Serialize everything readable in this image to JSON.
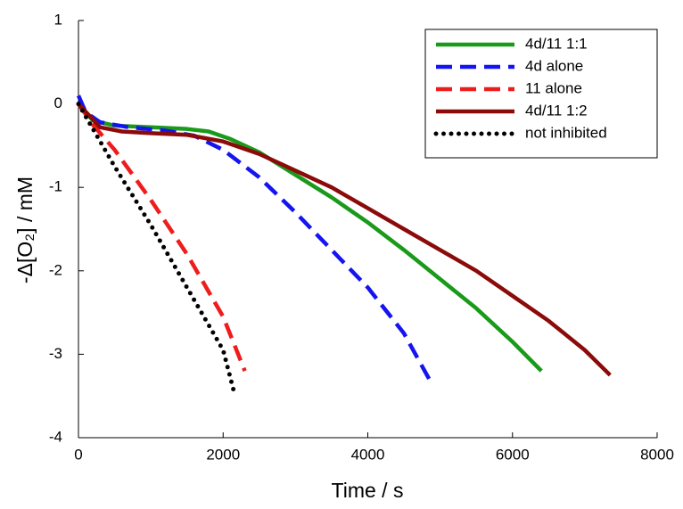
{
  "chart_data": {
    "type": "line",
    "xlabel": "Time / s",
    "ylabel": "-Δ[O₂] / mM",
    "xlim": [
      0,
      8000
    ],
    "ylim": [
      -4,
      1
    ],
    "xticks": [
      0,
      2000,
      4000,
      6000,
      8000
    ],
    "yticks": [
      1,
      0,
      -1,
      -2,
      -3,
      -4
    ],
    "legend": "upper right",
    "series": [
      {
        "name": "4d/11 1:1",
        "color": "#1a9a1a",
        "dash": "solid",
        "x": [
          0,
          200,
          500,
          1000,
          1500,
          1800,
          2100,
          2500,
          3000,
          3500,
          4000,
          4500,
          5000,
          5500,
          6000,
          6400
        ],
        "values": [
          0,
          -0.2,
          -0.26,
          -0.28,
          -0.3,
          -0.33,
          -0.42,
          -0.58,
          -0.85,
          -1.12,
          -1.42,
          -1.75,
          -2.1,
          -2.45,
          -2.85,
          -3.2
        ]
      },
      {
        "name": "4d alone",
        "color": "#1414f0",
        "dash": "dashed",
        "x": [
          0,
          100,
          300,
          700,
          1200,
          1600,
          2000,
          2500,
          3000,
          3500,
          4000,
          4500,
          4850
        ],
        "values": [
          0.1,
          -0.1,
          -0.22,
          -0.28,
          -0.32,
          -0.38,
          -0.55,
          -0.88,
          -1.3,
          -1.75,
          -2.2,
          -2.75,
          -3.3
        ]
      },
      {
        "name": "11 alone",
        "color": "#ee1c1c",
        "dash": "dashed",
        "x": [
          0,
          200,
          500,
          1000,
          1500,
          2000,
          2300
        ],
        "values": [
          0,
          -0.25,
          -0.55,
          -1.15,
          -1.8,
          -2.55,
          -3.2
        ]
      },
      {
        "name": "4d/11 1:2",
        "color": "#8b0a0a",
        "dash": "solid",
        "x": [
          0,
          300,
          600,
          1000,
          1500,
          2000,
          2500,
          3000,
          3500,
          4000,
          4500,
          5000,
          5500,
          6000,
          6500,
          7000,
          7350
        ],
        "values": [
          0,
          -0.28,
          -0.33,
          -0.35,
          -0.37,
          -0.45,
          -0.6,
          -0.8,
          -1.0,
          -1.25,
          -1.5,
          -1.75,
          -2.0,
          -2.3,
          -2.6,
          -2.95,
          -3.25
        ]
      },
      {
        "name": "not inhibited",
        "color": "#000000",
        "dash": "dotted",
        "x": [
          0,
          200,
          500,
          1000,
          1500,
          2000,
          2150
        ],
        "values": [
          0,
          -0.3,
          -0.75,
          -1.45,
          -2.2,
          -2.95,
          -3.45
        ]
      }
    ]
  }
}
